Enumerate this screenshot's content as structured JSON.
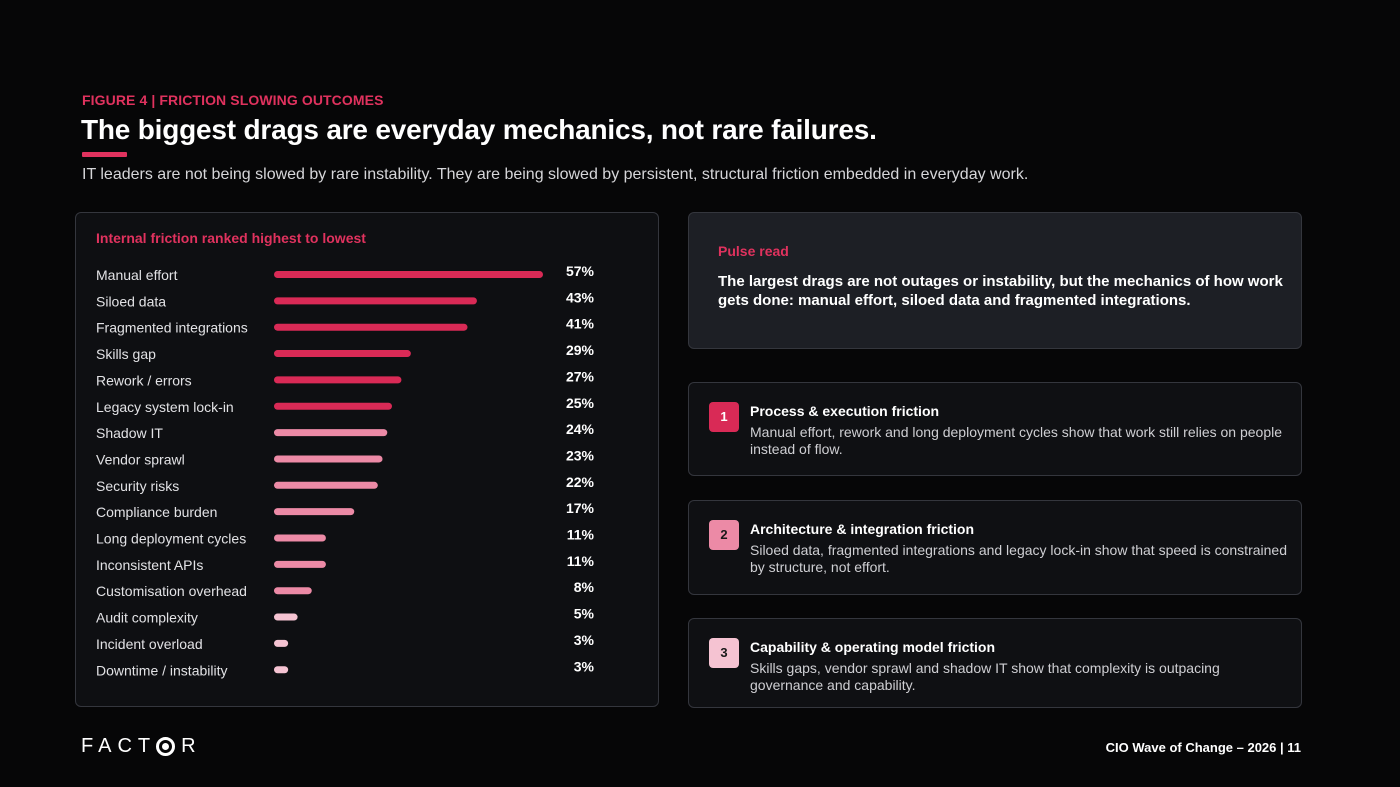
{
  "header": {
    "eyebrow": "FIGURE 4 | FRICTION SLOWING OUTCOMES",
    "headline": "The biggest drags are everyday mechanics, not rare failures.",
    "subhead": "IT leaders are not being slowed by rare instability. They are being slowed by persistent, structural friction embedded in everyday work."
  },
  "colors": {
    "accent": "#e0325e",
    "bar_dark": "#d92a56",
    "bar_light": "#ec8aa6",
    "bar_pale": "#f5c3d2",
    "background": "#060607"
  },
  "chart_data": {
    "type": "bar",
    "orientation": "horizontal",
    "title": "Internal friction ranked highest to lowest",
    "categories": [
      "Manual effort",
      "Siloed data",
      "Fragmented integrations",
      "Skills gap",
      "Rework / errors",
      "Legacy system lock-in",
      "Shadow IT",
      "Vendor sprawl",
      "Security risks",
      "Compliance burden",
      "Long deployment cycles",
      "Inconsistent APIs",
      "Customisation overhead",
      "Audit complexity",
      "Incident overload",
      "Downtime / instability"
    ],
    "values": [
      57,
      43,
      41,
      29,
      27,
      25,
      24,
      23,
      22,
      17,
      11,
      11,
      8,
      5,
      3,
      3
    ],
    "value_labels": [
      "57%",
      "43%",
      "41%",
      "29%",
      "27%",
      "25%",
      "24%",
      "23%",
      "22%",
      "17%",
      "11%",
      "11%",
      "8%",
      "5%",
      "3%",
      "3%"
    ],
    "bar_tone": [
      "dark",
      "dark",
      "dark",
      "dark",
      "dark",
      "dark",
      "light",
      "light",
      "light",
      "light",
      "light",
      "light",
      "light",
      "pale",
      "pale",
      "pale"
    ],
    "unit": "%",
    "xlim": [
      0,
      57
    ],
    "grid": false,
    "legend": "none"
  },
  "pulse": {
    "label": "Pulse read",
    "text": "The largest drags are not outages or instability, but the mechanics of how work gets done: manual effort, siloed data and fragmented integrations."
  },
  "cards": [
    {
      "number": "1",
      "title": "Process & execution friction",
      "body": "Manual effort, rework and long deployment cycles show that work still relies on people instead of flow.",
      "badge_color": "#d92a56",
      "badge_text_color": "#ffffff"
    },
    {
      "number": "2",
      "title": "Architecture & integration friction",
      "body": "Siloed data, fragmented integrations and legacy lock-in show that speed is constrained by structure, not effort.",
      "badge_color": "#ec8aa6",
      "badge_text_color": "#1a1a1a"
    },
    {
      "number": "3",
      "title": "Capability & operating model friction",
      "body": "Skills gaps, vendor sprawl and shadow IT show that complexity is outpacing governance and capability.",
      "badge_color": "#f5c3d2",
      "badge_text_color": "#1a1a1a"
    }
  ],
  "footer": {
    "logo_before": "FACT",
    "logo_after": "R",
    "page_label": "CIO Wave of Change – 2026 | 11"
  }
}
